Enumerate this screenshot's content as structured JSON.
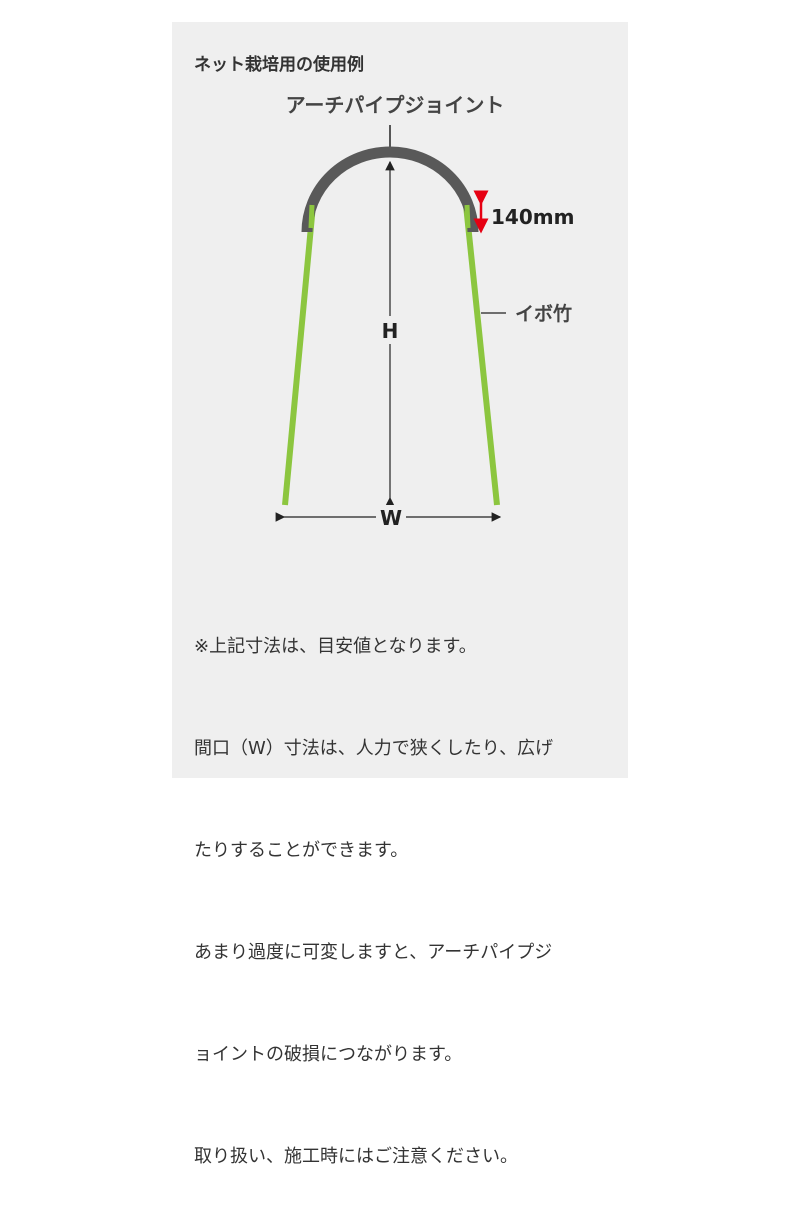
{
  "title": "ネット栽培用の使用例",
  "diagram": {
    "joint_label": "アーチパイプジョイント",
    "overlap_label": "140mm",
    "pole_label": "イボ竹",
    "height_label": "H",
    "width_label": "W",
    "colors": {
      "joint": "#595959",
      "pole": "#8cc63f",
      "overlap_arrow": "#e60012",
      "background": "#efefef"
    }
  },
  "notes": [
    "※上記寸法は、目安値となります。",
    "間口（W）寸法は、人力で狭くしたり、広げ",
    "たりすることができます。",
    "あまり過度に可変しますと、アーチパイプジ",
    "ョイントの破損につながります。",
    "取り扱い、施工時にはご注意ください。"
  ]
}
